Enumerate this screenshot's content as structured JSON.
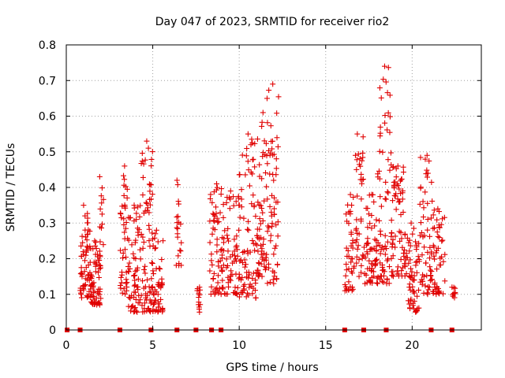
{
  "chart_data": {
    "type": "scatter",
    "title": "Day 047 of 2023, SRMTID for receiver rio2",
    "xlabel": "GPS time / hours",
    "ylabel": "SRMTID / TECUs",
    "xlim": [
      0,
      24
    ],
    "ylim": [
      0,
      0.8
    ],
    "xticks": [
      0,
      5,
      10,
      15,
      20
    ],
    "xtick_labels": [
      "0",
      "5",
      "10",
      "15",
      "20"
    ],
    "yticks": [
      0,
      0.1,
      0.2,
      0.3,
      0.4,
      0.5,
      0.6,
      0.7,
      0.8
    ],
    "ytick_labels": [
      "0",
      "0.1",
      "0.2",
      "0.3",
      "0.4",
      "0.5",
      "0.6",
      "0.7",
      "0.8"
    ],
    "grid": true,
    "marker": "+",
    "color": "#e00000",
    "zero_markers_x": [
      0.05,
      0.8,
      3.1,
      4.9,
      6.4,
      7.5,
      8.4,
      8.95,
      16.1,
      17.2,
      18.5,
      21.1,
      22.3
    ],
    "clusters": [
      {
        "x_start": 0.8,
        "x_end": 1.4,
        "y_min": 0.09,
        "y_max": 0.35,
        "count": 60
      },
      {
        "x_start": 1.4,
        "x_end": 2.0,
        "y_min": 0.07,
        "y_max": 0.25,
        "count": 60
      },
      {
        "x_start": 1.9,
        "x_end": 2.15,
        "y_min": 0.17,
        "y_max": 0.43,
        "count": 15
      },
      {
        "x_start": 3.1,
        "x_end": 3.6,
        "y_min": 0.1,
        "y_max": 0.46,
        "count": 45
      },
      {
        "x_start": 3.6,
        "x_end": 4.3,
        "y_min": 0.05,
        "y_max": 0.35,
        "count": 60
      },
      {
        "x_start": 4.3,
        "x_end": 5.0,
        "y_min": 0.05,
        "y_max": 0.53,
        "count": 70
      },
      {
        "x_start": 5.0,
        "x_end": 5.6,
        "y_min": 0.05,
        "y_max": 0.28,
        "count": 50
      },
      {
        "x_start": 6.35,
        "x_end": 6.65,
        "y_min": 0.18,
        "y_max": 0.42,
        "count": 20
      },
      {
        "x_start": 7.5,
        "x_end": 7.75,
        "y_min": 0.05,
        "y_max": 0.12,
        "count": 12
      },
      {
        "x_start": 8.3,
        "x_end": 9.0,
        "y_min": 0.1,
        "y_max": 0.41,
        "count": 55
      },
      {
        "x_start": 9.0,
        "x_end": 10.0,
        "y_min": 0.1,
        "y_max": 0.39,
        "count": 70
      },
      {
        "x_start": 10.0,
        "x_end": 11.0,
        "y_min": 0.09,
        "y_max": 0.55,
        "count": 80
      },
      {
        "x_start": 11.0,
        "x_end": 11.6,
        "y_min": 0.15,
        "y_max": 0.61,
        "count": 60
      },
      {
        "x_start": 11.6,
        "x_end": 12.3,
        "y_min": 0.13,
        "y_max": 0.69,
        "count": 60
      },
      {
        "x_start": 16.1,
        "x_end": 16.6,
        "y_min": 0.11,
        "y_max": 0.38,
        "count": 40
      },
      {
        "x_start": 16.6,
        "x_end": 17.2,
        "y_min": 0.15,
        "y_max": 0.55,
        "count": 40
      },
      {
        "x_start": 17.2,
        "x_end": 18.0,
        "y_min": 0.13,
        "y_max": 0.38,
        "count": 60
      },
      {
        "x_start": 18.0,
        "x_end": 18.8,
        "y_min": 0.13,
        "y_max": 0.74,
        "count": 70
      },
      {
        "x_start": 18.8,
        "x_end": 19.6,
        "y_min": 0.15,
        "y_max": 0.46,
        "count": 70
      },
      {
        "x_start": 19.6,
        "x_end": 20.4,
        "y_min": 0.05,
        "y_max": 0.3,
        "count": 60
      },
      {
        "x_start": 20.4,
        "x_end": 21.2,
        "y_min": 0.1,
        "y_max": 0.49,
        "count": 60
      },
      {
        "x_start": 21.2,
        "x_end": 21.9,
        "y_min": 0.1,
        "y_max": 0.34,
        "count": 50
      },
      {
        "x_start": 22.3,
        "x_end": 22.5,
        "y_min": 0.09,
        "y_max": 0.12,
        "count": 8
      }
    ]
  }
}
